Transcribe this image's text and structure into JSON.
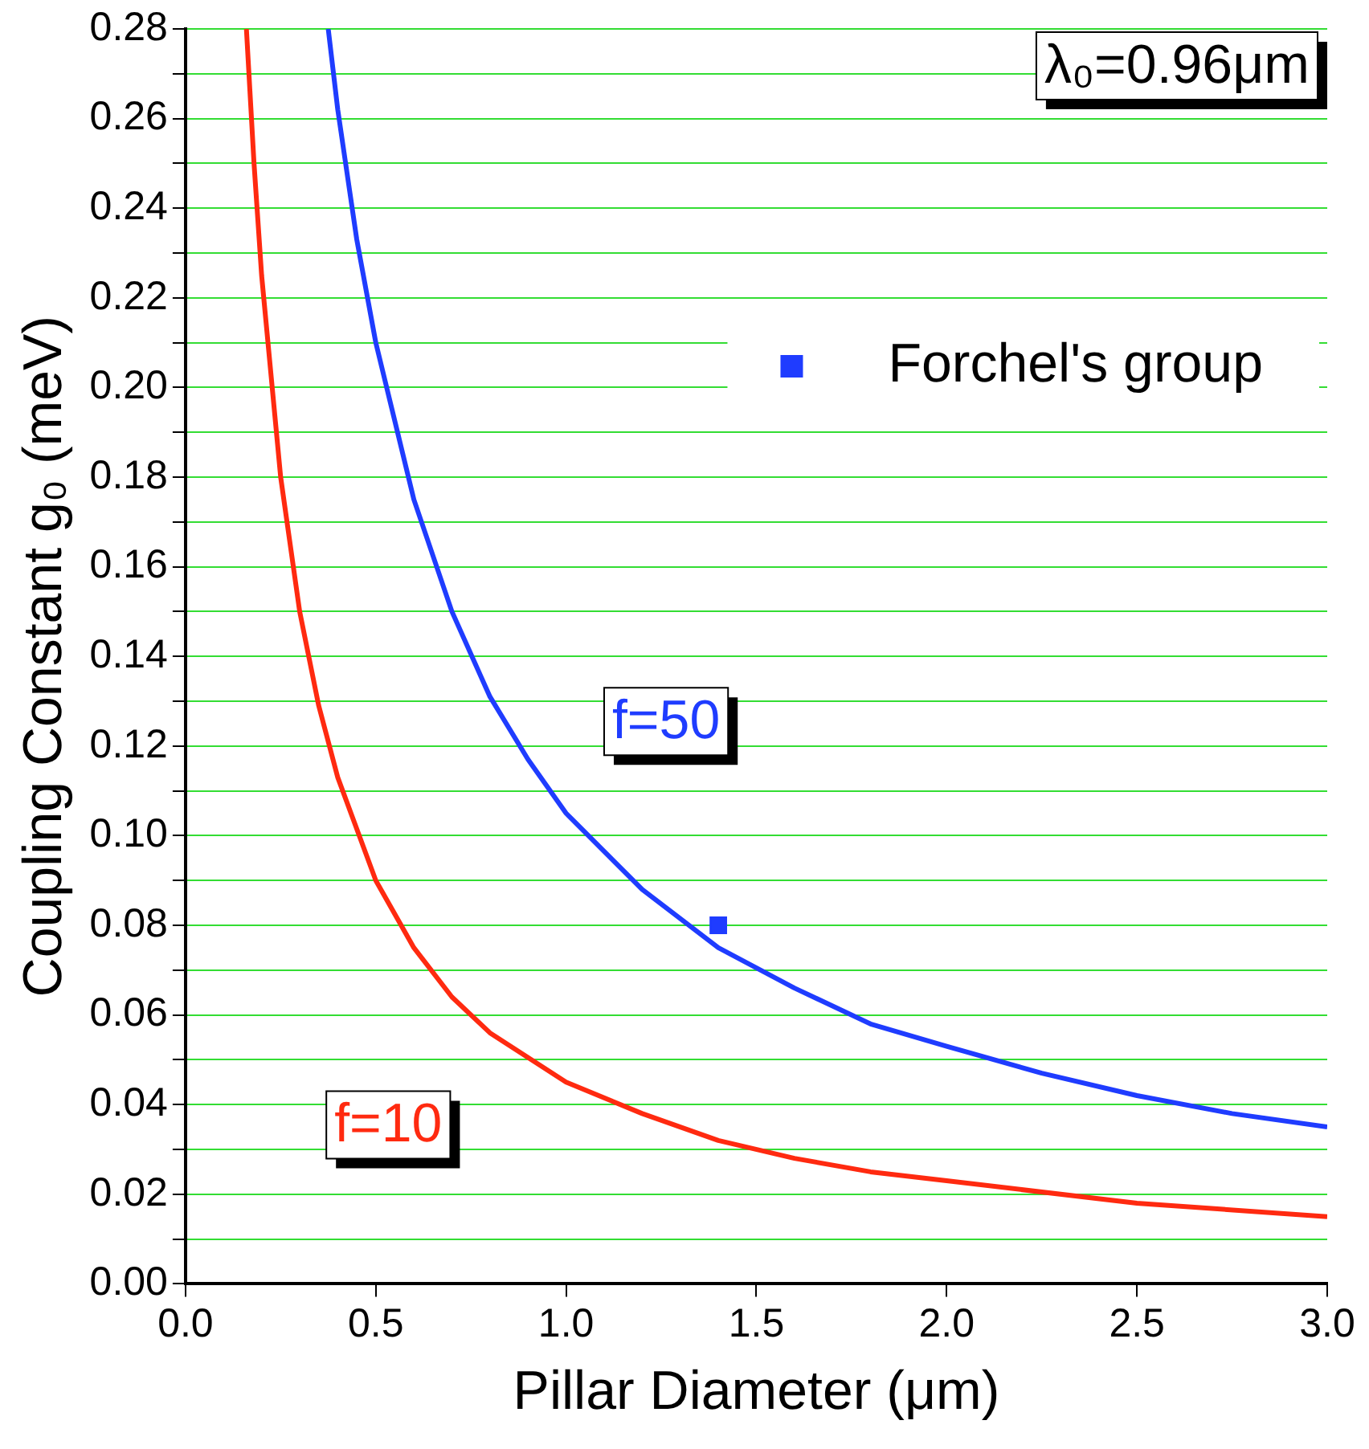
{
  "chart_data": {
    "type": "line",
    "xlabel": "Pillar Diameter (μm)",
    "ylabel": "Coupling Constant g₀ (meV)",
    "xlim": [
      0,
      3
    ],
    "xticks": [
      {
        "value": 0,
        "label": "0.0"
      },
      {
        "value": 0.5,
        "label": "0.5"
      },
      {
        "value": 1,
        "label": "1.0"
      },
      {
        "value": 1.5,
        "label": "1.5"
      },
      {
        "value": 2,
        "label": "2.0"
      },
      {
        "value": 2.5,
        "label": "2.5"
      },
      {
        "value": 3,
        "label": "3.0"
      }
    ],
    "ylim": [
      0,
      0.28
    ],
    "yticks": [
      {
        "value": 0,
        "label": "0.00"
      },
      {
        "value": 0.01,
        "label": null
      },
      {
        "value": 0.02,
        "label": "0.02"
      },
      {
        "value": 0.03,
        "label": null
      },
      {
        "value": 0.04,
        "label": "0.04"
      },
      {
        "value": 0.05,
        "label": null
      },
      {
        "value": 0.06,
        "label": "0.06"
      },
      {
        "value": 0.07,
        "label": null
      },
      {
        "value": 0.08,
        "label": "0.08"
      },
      {
        "value": 0.09,
        "label": null
      },
      {
        "value": 0.1,
        "label": "0.10"
      },
      {
        "value": 0.11,
        "label": null
      },
      {
        "value": 0.12,
        "label": "0.12"
      },
      {
        "value": 0.13,
        "label": null
      },
      {
        "value": 0.14,
        "label": "0.14"
      },
      {
        "value": 0.15,
        "label": null
      },
      {
        "value": 0.16,
        "label": "0.16"
      },
      {
        "value": 0.17,
        "label": null
      },
      {
        "value": 0.18,
        "label": "0.18"
      },
      {
        "value": 0.19,
        "label": null
      },
      {
        "value": 0.2,
        "label": "0.20"
      },
      {
        "value": 0.21,
        "label": null
      },
      {
        "value": 0.22,
        "label": "0.22"
      },
      {
        "value": 0.23,
        "label": null
      },
      {
        "value": 0.24,
        "label": "0.24"
      },
      {
        "value": 0.25,
        "label": null
      },
      {
        "value": 0.26,
        "label": "0.26"
      },
      {
        "value": 0.27,
        "label": null
      },
      {
        "value": 0.28,
        "label": "0.28"
      }
    ],
    "grid": "y",
    "legend": "top right",
    "line_style": "solid",
    "annotations": [
      "λ₀=0.96μm"
    ],
    "series": [
      {
        "name": "f=50",
        "color": "#1f3cff",
        "x": [
          0.375,
          0.4,
          0.45,
          0.5,
          0.6,
          0.7,
          0.8,
          0.9,
          1.0,
          1.2,
          1.4,
          1.6,
          1.8,
          2.0,
          2.25,
          2.5,
          2.75,
          3.0
        ],
        "values": [
          0.28,
          0.262,
          0.233,
          0.21,
          0.175,
          0.15,
          0.131,
          0.117,
          0.105,
          0.088,
          0.075,
          0.066,
          0.058,
          0.053,
          0.047,
          0.042,
          0.038,
          0.035
        ]
      },
      {
        "name": "f=10",
        "color": "#ff2a10",
        "x": [
          0.16,
          0.18,
          0.2,
          0.25,
          0.3,
          0.35,
          0.4,
          0.5,
          0.6,
          0.7,
          0.8,
          1.0,
          1.2,
          1.4,
          1.6,
          1.8,
          2.0,
          2.5,
          3.0
        ],
        "values": [
          0.28,
          0.25,
          0.225,
          0.18,
          0.15,
          0.129,
          0.113,
          0.09,
          0.075,
          0.064,
          0.056,
          0.045,
          0.038,
          0.032,
          0.028,
          0.025,
          0.023,
          0.018,
          0.015
        ]
      },
      {
        "name": "Forchel's group",
        "type": "scatter",
        "marker": "square",
        "color": "#1f3cff",
        "x": [
          1.4
        ],
        "values": [
          0.08
        ]
      }
    ]
  }
}
